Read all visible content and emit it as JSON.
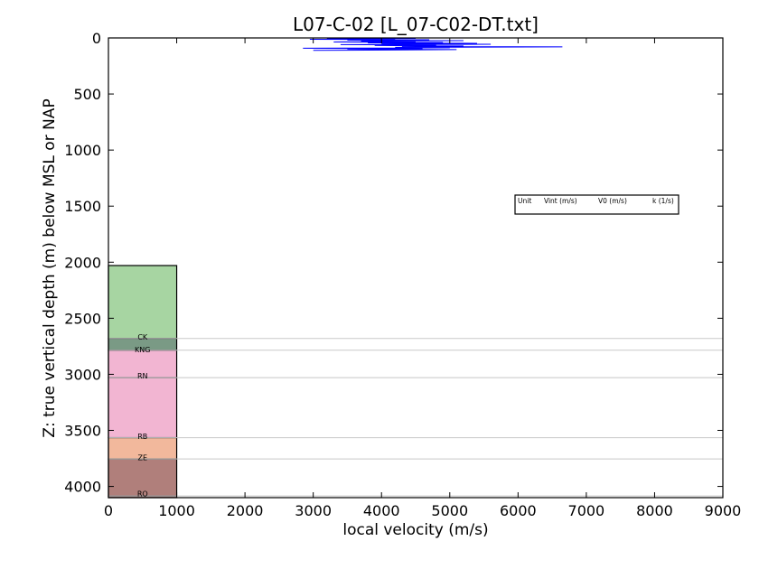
{
  "chart_data": {
    "type": "line",
    "title": "L07-C-02 [L_07-C02-DT.txt]",
    "xlabel": "local velocity (m/s)",
    "ylabel": "Z: true vertical depth (m) below MSL or NAP",
    "xlim": [
      0,
      9000
    ],
    "ylim": [
      4100,
      0
    ],
    "y_inverted": true,
    "grid": false,
    "x_ticks": [
      "0",
      "1000",
      "2000",
      "3000",
      "4000",
      "5000",
      "6000",
      "7000",
      "8000",
      "9000"
    ],
    "y_ticks": [
      "0",
      "500",
      "1000",
      "1500",
      "2000",
      "2500",
      "3000",
      "3500",
      "4000"
    ],
    "series": [
      {
        "color": "#0000ff",
        "points": [
          [
            3800,
            2
          ],
          [
            4500,
            4
          ],
          [
            3200,
            6
          ],
          [
            4200,
            9
          ],
          [
            2950,
            12
          ],
          [
            4700,
            16
          ],
          [
            3500,
            20
          ],
          [
            5200,
            24
          ],
          [
            3700,
            28
          ],
          [
            4500,
            32
          ],
          [
            3300,
            36
          ],
          [
            4900,
            40
          ],
          [
            3800,
            44
          ],
          [
            5400,
            48
          ],
          [
            4000,
            52
          ],
          [
            5600,
            56
          ],
          [
            3400,
            60
          ],
          [
            4800,
            64
          ],
          [
            3900,
            68
          ],
          [
            5200,
            72
          ],
          [
            4300,
            76
          ],
          [
            6650,
            80
          ],
          [
            4200,
            84
          ],
          [
            5000,
            88
          ],
          [
            2850,
            92
          ],
          [
            4600,
            96
          ],
          [
            3500,
            100
          ],
          [
            5100,
            104
          ],
          [
            4100,
            108
          ],
          [
            3000,
            110
          ]
        ]
      }
    ],
    "stratigraphy": {
      "column_x": [
        0,
        1000
      ],
      "units": [
        {
          "label": "",
          "top": 2030,
          "base": 2680,
          "color": "#a7d5a2"
        },
        {
          "label": "CK",
          "top": 2680,
          "base": 2785,
          "color": "#7a9a85"
        },
        {
          "label": "KNG",
          "top": 2785,
          "base": 3030,
          "color": "#f2b5d2"
        },
        {
          "label": "RN",
          "top": 3030,
          "base": 3565,
          "color": "#f2b5d2"
        },
        {
          "label": "RB",
          "top": 3565,
          "base": 3755,
          "color": "#f2b89c"
        },
        {
          "label": "ZE",
          "top": 3755,
          "base": 4085,
          "color": "#b07f7b"
        },
        {
          "label": "RO",
          "top": 4085,
          "base": 4100,
          "color": "#b07f7b"
        }
      ],
      "boundary_lines": [
        2680,
        2785,
        3030,
        3565,
        3755,
        4085
      ],
      "label_depths": [
        {
          "label": "CK",
          "depth": 2660
        },
        {
          "label": "KNG",
          "depth": 2770
        },
        {
          "label": "RN",
          "depth": 3005
        },
        {
          "label": "RB",
          "depth": 3545
        },
        {
          "label": "ZE",
          "depth": 3735
        },
        {
          "label": "RO",
          "depth": 4055
        }
      ]
    },
    "legend": {
      "placement": "right",
      "entries": [
        "Unit",
        "Vint (m/s)",
        "V0 (m/s)",
        "k (1/s)"
      ]
    }
  }
}
